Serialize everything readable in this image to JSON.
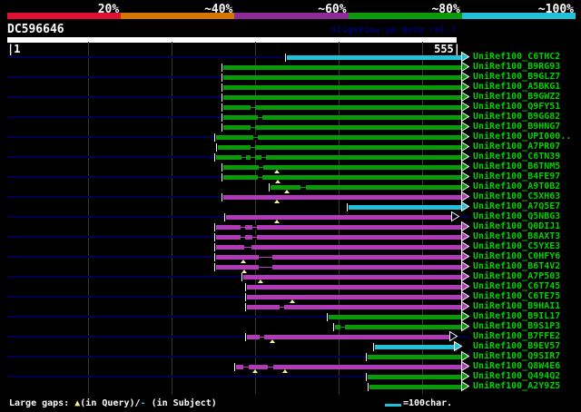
{
  "palette": {
    "green": "#089a08",
    "magenta": "#b13ab8",
    "cyan": "#1fc0d8",
    "navy_guide": "#000050",
    "grid": "#3a3a18",
    "label_green": "#00d000",
    "gap_triangle_yellow": "#f2f29b",
    "hollow_arrow_fill": "#000010",
    "arrow_outline": "#ffffff"
  },
  "identity_scale": {
    "segments": [
      {
        "label": "20%",
        "color": "#e01030"
      },
      {
        "label": "~40%",
        "color": "#d47500"
      },
      {
        "label": "~60%",
        "color": "#8d2a96"
      },
      {
        "label": "~80%",
        "color": "#0a9a0a"
      },
      {
        "label": "~100%",
        "color": "#1fc0d8"
      }
    ]
  },
  "header": {
    "query_id": "DC596646",
    "watermark": "AlignView.pm Beta rel.7",
    "ruler_left": "|1",
    "ruler_right": "555|",
    "query_length": 555
  },
  "alignments": {
    "rows": [
      {
        "label": "UniRef100_C6THC2",
        "color": "cyan",
        "start": 316,
        "end": 508,
        "hollow": false,
        "subject_gaps": [],
        "query_gaps": []
      },
      {
        "label": "UniRef100_B9RG93",
        "color": "green",
        "start": 246,
        "end": 508,
        "hollow": false,
        "subject_gaps": [],
        "query_gaps": []
      },
      {
        "label": "UniRef100_B9GLZ7",
        "color": "green",
        "start": 246,
        "end": 508,
        "hollow": false,
        "subject_gaps": [],
        "query_gaps": []
      },
      {
        "label": "UniRef100_A5BKG1",
        "color": "green",
        "start": 246,
        "end": 508,
        "hollow": false,
        "subject_gaps": [],
        "query_gaps": []
      },
      {
        "label": "UniRef100_B9GWZ2",
        "color": "green",
        "start": 246,
        "end": 508,
        "hollow": false,
        "subject_gaps": [],
        "query_gaps": []
      },
      {
        "label": "UniRef100_Q9FY51",
        "color": "green",
        "start": 246,
        "end": 508,
        "hollow": false,
        "subject_gaps": [
          [
            276,
            281
          ]
        ],
        "query_gaps": []
      },
      {
        "label": "UniRef100_B9GG82",
        "color": "green",
        "start": 246,
        "end": 508,
        "hollow": false,
        "subject_gaps": [
          [
            284,
            289
          ]
        ],
        "query_gaps": []
      },
      {
        "label": "UniRef100_B9HNG7",
        "color": "green",
        "start": 246,
        "end": 508,
        "hollow": false,
        "subject_gaps": [
          [
            276,
            281
          ]
        ],
        "query_gaps": []
      },
      {
        "label": "UniRef100_UPI000..",
        "color": "green",
        "start": 238,
        "end": 508,
        "hollow": false,
        "subject_gaps": [
          [
            279,
            284
          ]
        ],
        "query_gaps": []
      },
      {
        "label": "UniRef100_A7PR07",
        "color": "green",
        "start": 240,
        "end": 508,
        "hollow": false,
        "subject_gaps": [
          [
            276,
            281
          ]
        ],
        "query_gaps": []
      },
      {
        "label": "UniRef100_C6TN39",
        "color": "green",
        "start": 238,
        "end": 508,
        "hollow": false,
        "subject_gaps": [
          [
            266,
            271
          ],
          [
            276,
            281
          ],
          [
            288,
            293
          ]
        ],
        "query_gaps": []
      },
      {
        "label": "UniRef100_B6TNM5",
        "color": "green",
        "start": 246,
        "end": 508,
        "hollow": false,
        "subject_gaps": [
          [
            285,
            290
          ]
        ],
        "query_gaps": [
          305
        ]
      },
      {
        "label": "UniRef100_B4FE97",
        "color": "green",
        "start": 246,
        "end": 508,
        "hollow": false,
        "subject_gaps": [
          [
            284,
            289
          ]
        ],
        "query_gaps": [
          306
        ]
      },
      {
        "label": "UniRef100_A9T0B2",
        "color": "green",
        "start": 298,
        "end": 508,
        "hollow": false,
        "subject_gaps": [
          [
            331,
            337
          ]
        ],
        "query_gaps": [
          316
        ]
      },
      {
        "label": "UniRef100_C5XH63",
        "color": "magenta",
        "start": 246,
        "end": 508,
        "hollow": false,
        "subject_gaps": [],
        "query_gaps": [
          305
        ]
      },
      {
        "label": "UniRef100_A7Q5E7",
        "color": "cyan",
        "start": 384,
        "end": 508,
        "hollow": false,
        "subject_gaps": [],
        "query_gaps": []
      },
      {
        "label": "UniRef100_Q5NBG3",
        "color": "magenta",
        "start": 249,
        "end": 497,
        "hollow": true,
        "subject_gaps": [],
        "query_gaps": [
          305
        ]
      },
      {
        "label": "UniRef100_Q0DIJ1",
        "color": "magenta",
        "start": 238,
        "end": 508,
        "hollow": false,
        "subject_gaps": [
          [
            265,
            270
          ],
          [
            278,
            283
          ]
        ],
        "query_gaps": []
      },
      {
        "label": "UniRef100_B8AXT3",
        "color": "magenta",
        "start": 238,
        "end": 508,
        "hollow": false,
        "subject_gaps": [
          [
            265,
            270
          ],
          [
            278,
            283
          ]
        ],
        "query_gaps": []
      },
      {
        "label": "UniRef100_C5YXE3",
        "color": "magenta",
        "start": 238,
        "end": 508,
        "hollow": false,
        "subject_gaps": [
          [
            269,
            277
          ]
        ],
        "query_gaps": []
      },
      {
        "label": "UniRef100_C0HFY6",
        "color": "magenta",
        "start": 238,
        "end": 508,
        "hollow": false,
        "subject_gaps": [
          [
            285,
            300
          ]
        ],
        "query_gaps": [
          268
        ]
      },
      {
        "label": "UniRef100_B6T4V2",
        "color": "magenta",
        "start": 238,
        "end": 508,
        "hollow": false,
        "subject_gaps": [
          [
            285,
            300
          ]
        ],
        "query_gaps": [
          269
        ]
      },
      {
        "label": "UniRef100_A7P503",
        "color": "magenta",
        "start": 268,
        "end": 508,
        "hollow": false,
        "subject_gaps": [],
        "query_gaps": [
          287
        ]
      },
      {
        "label": "UniRef100_C6T745",
        "color": "magenta",
        "start": 272,
        "end": 508,
        "hollow": false,
        "subject_gaps": [],
        "query_gaps": []
      },
      {
        "label": "UniRef100_C6TE75",
        "color": "magenta",
        "start": 272,
        "end": 508,
        "hollow": false,
        "subject_gaps": [],
        "query_gaps": [
          322
        ]
      },
      {
        "label": "UniRef100_B9HAI1",
        "color": "magenta",
        "start": 272,
        "end": 508,
        "hollow": false,
        "subject_gaps": [
          [
            308,
            313
          ]
        ],
        "query_gaps": []
      },
      {
        "label": "UniRef100_B9IL17",
        "color": "green",
        "start": 362,
        "end": 508,
        "hollow": false,
        "subject_gaps": [],
        "query_gaps": []
      },
      {
        "label": "UniRef100_B9S1P3",
        "color": "green",
        "start": 369,
        "end": 508,
        "hollow": false,
        "subject_gaps": [
          [
            375,
            380
          ]
        ],
        "query_gaps": []
      },
      {
        "label": "UniRef100_B7FFE2",
        "color": "magenta",
        "start": 272,
        "end": 495,
        "hollow": true,
        "subject_gaps": [
          [
            286,
            291
          ]
        ],
        "query_gaps": [
          300
        ]
      },
      {
        "label": "UniRef100_B9EV57",
        "color": "cyan",
        "start": 413,
        "end": 500,
        "hollow": false,
        "subject_gaps": [],
        "query_gaps": []
      },
      {
        "label": "UniRef100_Q9SIR7",
        "color": "green",
        "start": 405,
        "end": 508,
        "hollow": false,
        "subject_gaps": [],
        "query_gaps": []
      },
      {
        "label": "UniRef100_Q8W4E6",
        "color": "magenta",
        "start": 260,
        "end": 508,
        "hollow": false,
        "subject_gaps": [
          [
            268,
            274
          ],
          [
            295,
            301
          ]
        ],
        "query_gaps": [
          281,
          314
        ]
      },
      {
        "label": "UniRef100_Q494Q2",
        "color": "green",
        "start": 405,
        "end": 508,
        "hollow": false,
        "subject_gaps": [],
        "query_gaps": []
      },
      {
        "label": "UniRef100_A2Y9Z5",
        "color": "green",
        "start": 407,
        "end": 508,
        "hollow": false,
        "subject_gaps": [],
        "query_gaps": []
      }
    ]
  },
  "footer": {
    "prefix": "Large gaps: ",
    "query_gap_symbol": "▲",
    "mid": "(in Query)/",
    "subject_gap_symbol": "-",
    "suffix": " (in Subject)",
    "scale_label": "=100char."
  }
}
